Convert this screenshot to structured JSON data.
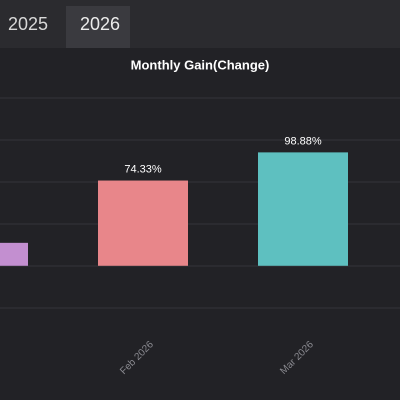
{
  "tabs": [
    "2025",
    "2026"
  ],
  "chart_data": {
    "type": "bar",
    "title": "Monthly Gain(Change)",
    "categories": [
      null,
      "Feb 2026",
      "Mar 2026"
    ],
    "values": [
      20,
      74.33,
      98.88
    ],
    "value_labels": [
      null,
      "74.33%",
      "98.88%"
    ],
    "colors": [
      "#c38fd0",
      "#e8868a",
      "#5ec0c0"
    ],
    "ylim": [
      -56,
      162
    ]
  }
}
